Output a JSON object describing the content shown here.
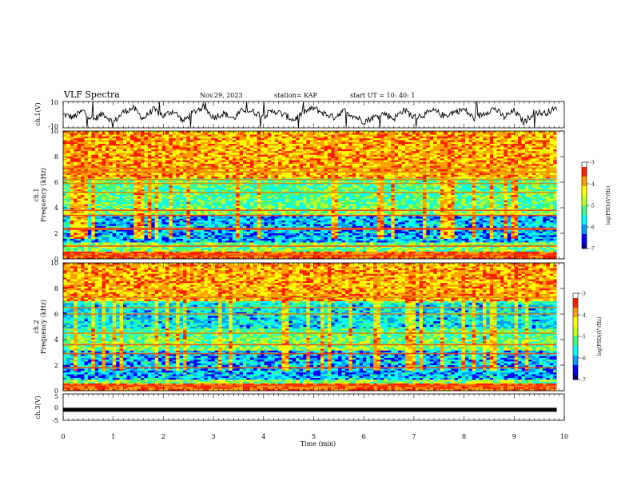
{
  "header": {
    "title": "VLF Spectra",
    "date": "Nov.29, 2023",
    "station": "station= KAP",
    "start": "start  UT =   10: 40: 1"
  },
  "chart_data": [
    {
      "type": "line",
      "panel": "ch1-waveform",
      "ylabel": "ch.1(V)",
      "ylim": [
        -10,
        10
      ],
      "yticks": [
        "10",
        "-10"
      ],
      "xlim": [
        0,
        10
      ],
      "series": [
        {
          "color": "#000000",
          "x": [
            0,
            0.2,
            0.4,
            0.6,
            0.8,
            1.0,
            1.2,
            1.4,
            1.6,
            1.8,
            2.0,
            2.2,
            2.4,
            2.6,
            2.8,
            3.0,
            3.2,
            3.4,
            3.6,
            3.8,
            4.0,
            4.2,
            4.4,
            4.6,
            4.8,
            5.0,
            5.2,
            5.4,
            5.6,
            5.8,
            6.0,
            6.2,
            6.4,
            6.6,
            6.8,
            7.0,
            7.2,
            7.4,
            7.6,
            7.8,
            8.0,
            8.2,
            8.4,
            8.6,
            8.8,
            9.0,
            9.2,
            9.4,
            9.6,
            9.8
          ],
          "values": [
            0,
            -2,
            3,
            -4,
            1,
            -6,
            2,
            5,
            -3,
            4,
            -1,
            3,
            -5,
            2,
            6,
            -2,
            1,
            -3,
            4,
            2,
            -1,
            3,
            0,
            -4,
            2,
            5,
            1,
            -2,
            3,
            -1,
            -5,
            -2,
            1,
            -3,
            4,
            -2,
            0,
            3,
            -1,
            2,
            4,
            -3,
            1,
            5,
            -2,
            3,
            -6,
            2,
            1,
            4
          ]
        }
      ]
    },
    {
      "type": "heatmap",
      "panel": "ch1-spectrogram",
      "ylabel": "ch.1\nFrequency (kHz)",
      "ylim": [
        0,
        10
      ],
      "yticks": [
        "0",
        "2",
        "4",
        "6",
        "8",
        "10"
      ],
      "xlim": [
        0,
        9.85
      ],
      "colorbar": {
        "label": "log(PSD)(V²/Hz)",
        "range": [
          -7,
          -3
        ],
        "ticks": [
          "-3",
          "-4",
          "-5",
          "-6",
          "-7"
        ]
      },
      "features": {
        "persistent_lines_khz": [
          0.3,
          1.0,
          2.3,
          2.4,
          3.4,
          3.8,
          5.2,
          5.9,
          6.2,
          6.8,
          7.1
        ],
        "high_band_khz": [
          6.3,
          10
        ],
        "low_band_khz": [
          1.3,
          3.4
        ]
      }
    },
    {
      "type": "heatmap",
      "panel": "ch2-spectrogram",
      "ylabel": "ch.2\nFrequency (kHz)",
      "ylim": [
        0,
        10
      ],
      "yticks": [
        "0",
        "2",
        "4",
        "6",
        "8",
        "10"
      ],
      "xlim": [
        0,
        9.85
      ],
      "colorbar": {
        "label": "log(PSD)(V²/Hz)",
        "range": [
          -7,
          -3
        ],
        "ticks": [
          "-3",
          "-4",
          "-5",
          "-6",
          "-7"
        ]
      },
      "features": {
        "persistent_lines_khz": [
          0.4,
          1.8,
          2.9,
          3.6,
          4.5,
          6.0,
          6.5,
          7.3
        ],
        "high_band_khz": [
          7.0,
          10
        ],
        "low_band_khz": [
          0.8,
          3.2
        ]
      }
    },
    {
      "type": "line",
      "panel": "ch3-waveform",
      "ylabel": "ch.3(V)",
      "ylim": [
        -5,
        5
      ],
      "yticks": [
        "5",
        "0",
        "-5"
      ],
      "xlim": [
        0,
        10
      ],
      "series": [
        {
          "color": "#000000",
          "x": [
            0,
            9.85
          ],
          "values": [
            -1,
            -1
          ]
        }
      ]
    }
  ],
  "xaxis": {
    "label": "Time (min)",
    "ticks": [
      "0",
      "1",
      "2",
      "3",
      "4",
      "5",
      "6",
      "7",
      "8",
      "9",
      "10"
    ]
  },
  "colors": {
    "scale": [
      "#000080",
      "#0000ff",
      "#00a0ff",
      "#00ffff",
      "#40ff80",
      "#c0ff20",
      "#ffff00",
      "#ffa000",
      "#ff2000",
      "#ffffff"
    ]
  }
}
